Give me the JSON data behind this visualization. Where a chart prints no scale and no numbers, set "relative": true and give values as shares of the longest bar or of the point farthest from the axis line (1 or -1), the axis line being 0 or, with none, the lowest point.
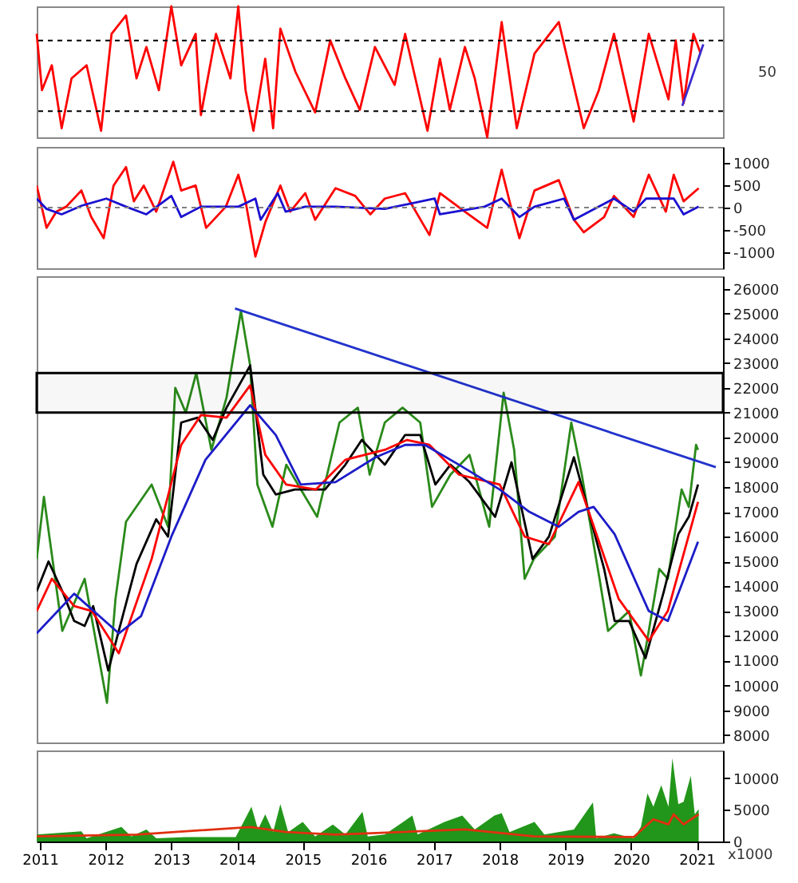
{
  "chart_data": [
    {
      "type": "line",
      "relative": true,
      "xlim": [
        2010.95,
        2021.4
      ],
      "tick_labels": false,
      "series": [
        {
          "color": "#ff0000",
          "x": [
            2010.95,
            2011.03,
            2011.18,
            2011.33,
            2011.48,
            2011.71,
            2011.86,
            2011.93,
            2012.09,
            2012.31,
            2012.47,
            2012.62,
            2012.81,
            2013.0,
            2013.15,
            2013.37,
            2013.45,
            2013.68,
            2013.9,
            2014.02,
            2014.13,
            2014.25,
            2014.43,
            2014.55,
            2014.66,
            2014.89,
            2015.19,
            2015.42,
            2015.65,
            2015.87,
            2016.1,
            2016.4,
            2016.56,
            2016.9,
            2017.09,
            2017.24,
            2017.47,
            2017.62,
            2017.81,
            2018.03,
            2018.26,
            2018.53,
            2018.9,
            2019.28,
            2019.51,
            2019.74,
            2020.04,
            2020.27,
            2020.57,
            2020.68,
            2020.8,
            2020.95,
            2021.06
          ],
          "values": [
            0.79,
            0.36,
            0.55,
            0.07,
            0.45,
            0.55,
            0.21,
            0.05,
            0.79,
            0.93,
            0.45,
            0.69,
            0.36,
            1.0,
            0.55,
            0.79,
            0.17,
            0.79,
            0.45,
            1.0,
            0.36,
            0.05,
            0.6,
            0.07,
            0.83,
            0.5,
            0.19,
            0.74,
            0.45,
            0.21,
            0.69,
            0.4,
            0.79,
            0.05,
            0.6,
            0.21,
            0.69,
            0.45,
            0,
            0.88,
            0.07,
            0.64,
            0.88,
            0.07,
            0.36,
            0.79,
            0.12,
            0.79,
            0.29,
            0.74,
            0.26,
            0.79,
            0.64
          ]
        },
        {
          "color": "#3a2ad0",
          "x": [
            2020.78,
            2021.1
          ],
          "values": [
            0.24,
            0.71
          ]
        }
      ],
      "ref_lines": [
        {
          "axis": "y",
          "value": 0.74,
          "line_style": "dashed",
          "color": "#000000"
        },
        {
          "axis": "y",
          "value": 0.2,
          "line_style": "dashed",
          "color": "#000000"
        }
      ],
      "annotations": [
        "50"
      ]
    },
    {
      "type": "line",
      "xlim": [
        2010.95,
        2021.4
      ],
      "ylim": [
        -1350,
        1350
      ],
      "yticks": [
        -1000,
        -500,
        0,
        500,
        1000
      ],
      "tick_labels": "y",
      "series": [
        {
          "color": "#ff0000",
          "x": [
            2010.95,
            2011.1,
            2011.25,
            2011.4,
            2011.63,
            2011.78,
            2011.97,
            2012.12,
            2012.31,
            2012.43,
            2012.58,
            2012.77,
            2013.03,
            2013.15,
            2013.37,
            2013.53,
            2013.83,
            2014.02,
            2014.13,
            2014.28,
            2014.43,
            2014.66,
            2014.81,
            2015.04,
            2015.19,
            2015.5,
            2015.8,
            2016.03,
            2016.25,
            2016.56,
            2016.93,
            2017.09,
            2017.47,
            2017.81,
            2018.03,
            2018.15,
            2018.3,
            2018.53,
            2018.9,
            2019.13,
            2019.28,
            2019.59,
            2019.74,
            2020.04,
            2020.27,
            2020.53,
            2020.65,
            2020.8,
            2021.03
          ],
          "values": [
            490,
            -450,
            -90,
            20,
            380,
            -210,
            -680,
            490,
            900,
            140,
            490,
            -90,
            1020,
            380,
            490,
            -450,
            20,
            730,
            140,
            -1090,
            -330,
            490,
            -90,
            320,
            -270,
            430,
            260,
            -150,
            200,
            320,
            -610,
            320,
            -90,
            -450,
            840,
            140,
            -680,
            380,
            610,
            -270,
            -550,
            -210,
            260,
            -210,
            730,
            -90,
            730,
            140,
            430
          ]
        },
        {
          "color": "#1a10d0",
          "x": [
            2010.95,
            2011.1,
            2011.33,
            2011.63,
            2012.01,
            2012.31,
            2012.62,
            2013.0,
            2013.15,
            2013.45,
            2014.02,
            2014.28,
            2014.36,
            2014.62,
            2014.74,
            2015.04,
            2015.5,
            2016.25,
            2017.01,
            2017.09,
            2017.77,
            2018.03,
            2018.3,
            2018.53,
            2018.98,
            2019.13,
            2019.74,
            2020.04,
            2020.23,
            2020.65,
            2020.8,
            2021.03
          ],
          "values": [
            200,
            -30,
            -150,
            40,
            200,
            20,
            -150,
            260,
            -210,
            20,
            20,
            200,
            -270,
            320,
            -90,
            20,
            20,
            -30,
            200,
            -150,
            20,
            200,
            -210,
            20,
            200,
            -270,
            200,
            -90,
            200,
            200,
            -150,
            20
          ]
        }
      ],
      "ref_lines": [
        {
          "axis": "y",
          "value": 0,
          "line_style": "dashed",
          "color": "#808080"
        }
      ]
    },
    {
      "type": "line",
      "xlim": [
        2010.95,
        2021.4
      ],
      "ylim": [
        7700,
        26500
      ],
      "yticks": [
        8000,
        9000,
        10000,
        11000,
        12000,
        13000,
        14000,
        15000,
        16000,
        17000,
        18000,
        19000,
        20000,
        21000,
        22000,
        23000,
        24000,
        25000,
        26000
      ],
      "tick_labels": "y",
      "series": [
        {
          "color": "#2a8a1a",
          "x": [
            2010.95,
            2011.06,
            2011.34,
            2011.68,
            2012.02,
            2012.15,
            2012.31,
            2012.7,
            2012.95,
            2013.06,
            2013.22,
            2013.38,
            2013.61,
            2013.84,
            2014.06,
            2014.2,
            2014.31,
            2014.54,
            2014.75,
            2015.04,
            2015.22,
            2015.56,
            2015.84,
            2016.02,
            2016.25,
            2016.52,
            2016.79,
            2016.97,
            2017.25,
            2017.54,
            2017.84,
            2018.06,
            2018.22,
            2018.38,
            2018.52,
            2018.84,
            2019.09,
            2019.25,
            2019.52,
            2019.65,
            2019.97,
            2020.15,
            2020.27,
            2020.43,
            2020.56,
            2020.77,
            2020.88,
            2020.99,
            2021.02
          ],
          "values": [
            15100,
            17600,
            12200,
            14300,
            9300,
            13500,
            16600,
            18100,
            16400,
            22000,
            21000,
            22600,
            19500,
            21600,
            25100,
            22900,
            18100,
            16400,
            18900,
            17600,
            16800,
            20600,
            21200,
            18500,
            20600,
            21200,
            20600,
            17200,
            18500,
            19300,
            16400,
            21800,
            19500,
            14300,
            15100,
            16000,
            20600,
            18500,
            14300,
            12200,
            13000,
            10400,
            12200,
            14700,
            14300,
            17900,
            17200,
            19700,
            19500
          ]
        },
        {
          "color": "#000000",
          "x": [
            2010.95,
            2011.13,
            2011.34,
            2011.52,
            2011.68,
            2011.81,
            2012.04,
            2012.2,
            2012.47,
            2012.77,
            2012.95,
            2013.15,
            2013.4,
            2013.63,
            2013.84,
            2014.2,
            2014.4,
            2014.59,
            2014.88,
            2015.34,
            2015.65,
            2015.9,
            2016.25,
            2016.56,
            2016.79,
            2017.02,
            2017.25,
            2017.54,
            2017.93,
            2018.18,
            2018.5,
            2018.75,
            2019.13,
            2019.59,
            2019.75,
            2019.97,
            2020.22,
            2020.5,
            2020.72,
            2020.88,
            2021.02
          ],
          "values": [
            13800,
            15000,
            13800,
            12600,
            12400,
            13200,
            10600,
            12200,
            14900,
            16700,
            16000,
            20600,
            20800,
            19900,
            21200,
            22900,
            18500,
            17700,
            17900,
            17900,
            18900,
            19900,
            18900,
            20100,
            20100,
            18100,
            18900,
            18200,
            16800,
            19000,
            15100,
            16000,
            19200,
            14700,
            12600,
            12600,
            11100,
            13800,
            16100,
            16800,
            18100
          ]
        },
        {
          "color": "#ff0000",
          "x": [
            2010.95,
            2011.18,
            2011.52,
            2011.79,
            2012.2,
            2012.7,
            2013.15,
            2013.45,
            2013.84,
            2014.2,
            2014.43,
            2014.75,
            2015.2,
            2015.65,
            2016.25,
            2016.59,
            2016.93,
            2017.38,
            2018.0,
            2018.38,
            2018.75,
            2019.2,
            2019.81,
            2020.27,
            2020.56,
            2021.02
          ],
          "values": [
            13000,
            14300,
            13200,
            13000,
            11300,
            15100,
            19700,
            20900,
            20800,
            22100,
            19300,
            18100,
            17900,
            19100,
            19500,
            19900,
            19700,
            18500,
            18100,
            16000,
            15700,
            18200,
            13500,
            11800,
            13000,
            17400
          ]
        },
        {
          "color": "#1c1cc8",
          "x": [
            2010.95,
            2011.52,
            2012.2,
            2012.54,
            2013.0,
            2013.52,
            2014.2,
            2014.59,
            2014.97,
            2015.5,
            2016.11,
            2016.56,
            2016.86,
            2017.38,
            2018.0,
            2018.45,
            2018.9,
            2019.2,
            2019.43,
            2019.75,
            2020.27,
            2020.56,
            2021.02
          ],
          "values": [
            12100,
            13700,
            12100,
            12800,
            16000,
            19100,
            21300,
            20100,
            18100,
            18200,
            19200,
            19700,
            19700,
            18900,
            17900,
            17000,
            16400,
            17000,
            17200,
            16100,
            13000,
            12600,
            15800
          ]
        },
        {
          "color": "#2233cc",
          "x": [
            2013.97,
            2021.29
          ],
          "values": [
            25200,
            18800
          ]
        }
      ],
      "bands": [
        {
          "axis": "y",
          "from": 21000,
          "to": 22600,
          "color": "#000000"
        }
      ]
    },
    {
      "type": "area",
      "xlim": [
        2010.95,
        2021.4
      ],
      "ylim": [
        0,
        14400
      ],
      "yticks": [
        0,
        5000,
        10000
      ],
      "xticks": [
        2011,
        2012,
        2013,
        2014,
        2015,
        2016,
        2017,
        2018,
        2019,
        2020,
        2021
      ],
      "series": [
        {
          "color": "#22961a",
          "x": [
            2010.95,
            2011.63,
            2011.71,
            2012.24,
            2012.39,
            2012.62,
            2012.77,
            2013.22,
            2013.98,
            2014.22,
            2014.32,
            2014.43,
            2014.55,
            2014.66,
            2014.78,
            2015.0,
            2015.19,
            2015.46,
            2015.65,
            2015.91,
            2015.99,
            2016.25,
            2016.67,
            2016.75,
            2017.16,
            2017.43,
            2017.62,
            2017.92,
            2018.03,
            2018.15,
            2018.53,
            2018.68,
            2019.13,
            2019.42,
            2019.47,
            2019.74,
            2020.04,
            2020.15,
            2020.25,
            2020.34,
            2020.46,
            2020.57,
            2020.63,
            2020.72,
            2020.8,
            2020.91,
            2020.97,
            2021.03
          ],
          "values": [
            1100,
            1600,
            500,
            2300,
            800,
            1900,
            500,
            700,
            700,
            5500,
            1900,
            4300,
            1500,
            5900,
            1500,
            3100,
            800,
            2700,
            1100,
            4700,
            800,
            1100,
            4100,
            1100,
            3100,
            4100,
            1900,
            4100,
            4500,
            1500,
            3100,
            1100,
            1900,
            6200,
            500,
            1300,
            500,
            2300,
            7600,
            5500,
            8900,
            5500,
            13200,
            5900,
            6300,
            10400,
            4300,
            5100
          ]
        },
        {
          "type": "line",
          "color": "#e03010",
          "x": [
            2010.95,
            2012.47,
            2014.21,
            2014.74,
            2015.5,
            2017.47,
            2018.53,
            2020.04,
            2020.34,
            2020.57,
            2020.65,
            2020.8,
            2021.03
          ],
          "values": [
            800,
            1100,
            2300,
            1500,
            1100,
            1900,
            800,
            700,
            3500,
            2700,
            4300,
            2700,
            4300
          ]
        }
      ],
      "annotations": [
        "x1000"
      ]
    }
  ]
}
